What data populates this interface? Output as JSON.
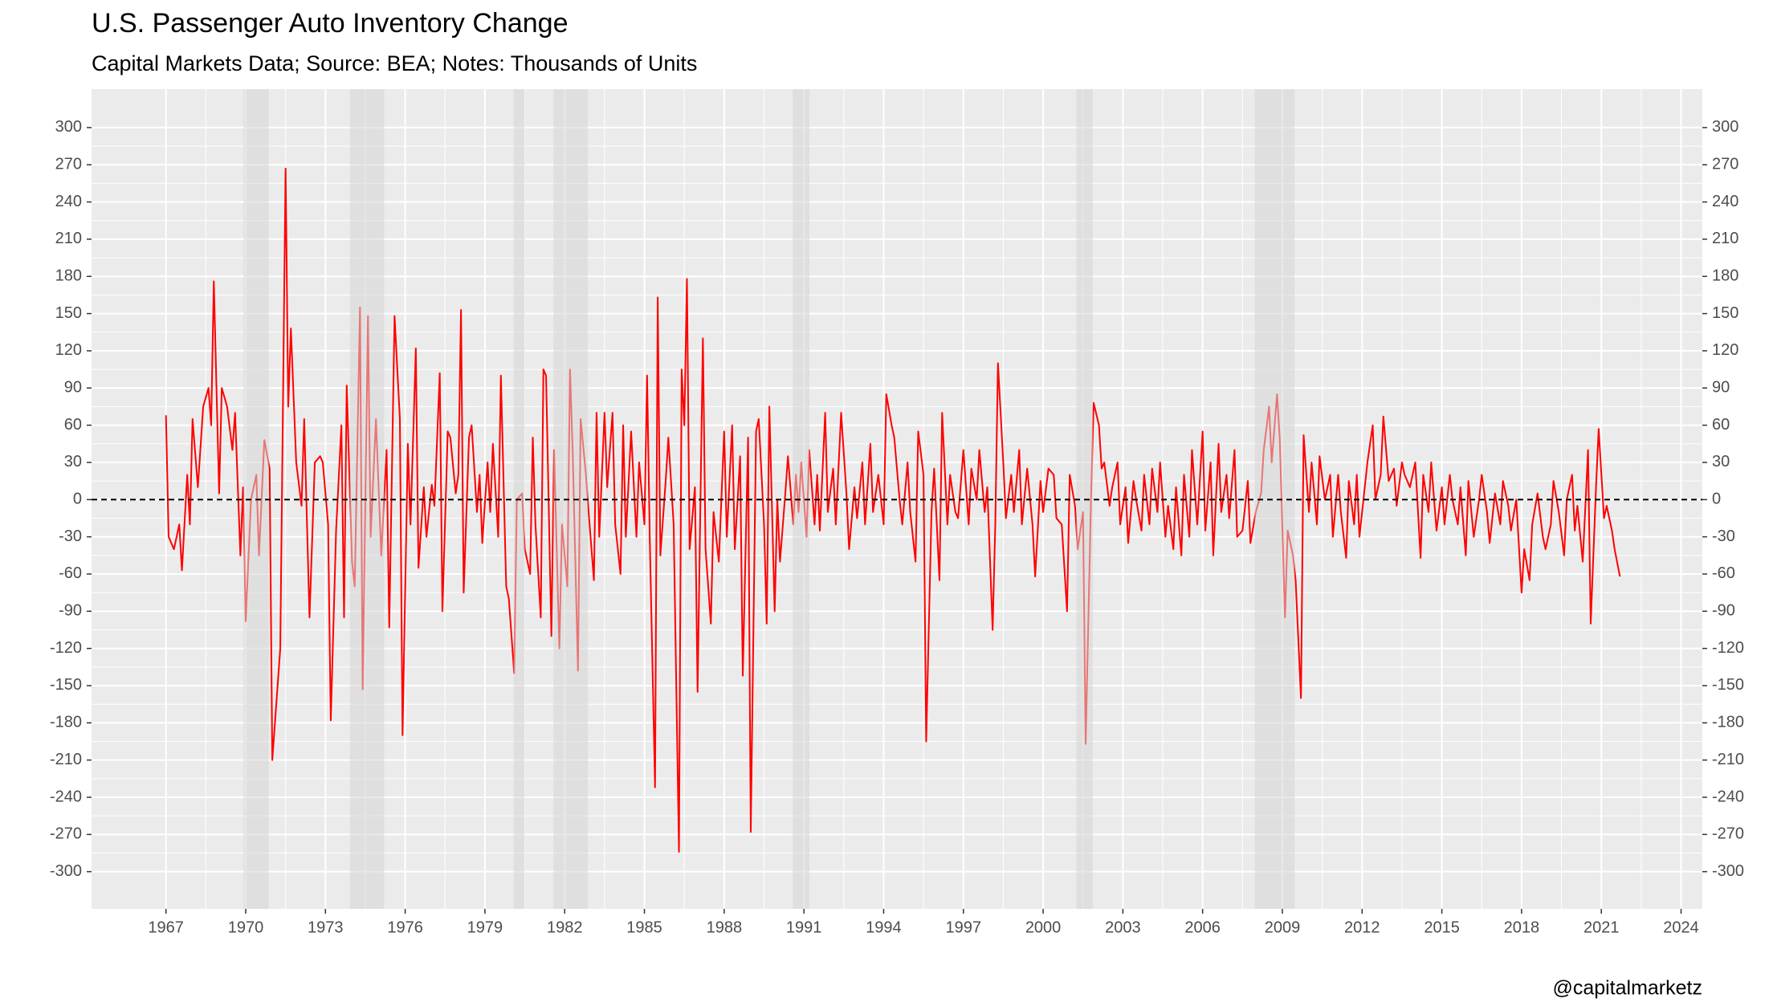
{
  "chart_data": {
    "type": "line",
    "title": "U.S. Passenger Auto Inventory Change",
    "subtitle": "Capital Markets Data; Source: BEA; Notes: Thousands of Units",
    "caption": "@capitalmarketz",
    "color": "#ff0000",
    "xlim": [
      1964.2,
      2024.8
    ],
    "xticks": [
      1967,
      1970,
      1973,
      1976,
      1979,
      1982,
      1985,
      1988,
      1991,
      1994,
      1997,
      2000,
      2003,
      2006,
      2009,
      2012,
      2015,
      2018,
      2021,
      2024
    ],
    "ylim": [
      -330,
      331
    ],
    "yticks": [
      -300,
      -270,
      -240,
      -210,
      -180,
      -150,
      -120,
      -90,
      -60,
      -30,
      0,
      30,
      60,
      90,
      120,
      150,
      180,
      210,
      240,
      270,
      300
    ],
    "grid": true,
    "hline": 0,
    "shaded_ranges": [
      [
        1969.92,
        1970.87
      ],
      [
        1973.92,
        1975.21
      ],
      [
        1980.08,
        1980.5
      ],
      [
        1981.58,
        1982.87
      ],
      [
        1990.58,
        1991.21
      ],
      [
        2001.25,
        2001.87
      ],
      [
        2007.96,
        2009.46
      ]
    ],
    "x": [
      1967.0,
      1967.1,
      1967.3,
      1967.5,
      1967.6,
      1967.8,
      1967.9,
      1968.0,
      1968.2,
      1968.4,
      1968.6,
      1968.7,
      1968.8,
      1969.0,
      1969.1,
      1969.3,
      1969.5,
      1969.6,
      1969.8,
      1969.9,
      1970.0,
      1970.2,
      1970.4,
      1970.5,
      1970.7,
      1970.9,
      1971.0,
      1971.3,
      1971.5,
      1971.6,
      1971.7,
      1971.9,
      1972.1,
      1972.2,
      1972.4,
      1972.6,
      1972.8,
      1972.9,
      1973.1,
      1973.2,
      1973.4,
      1973.6,
      1973.7,
      1973.8,
      1974.0,
      1974.1,
      1974.3,
      1974.4,
      1974.6,
      1974.7,
      1974.9,
      1975.1,
      1975.3,
      1975.4,
      1975.6,
      1975.8,
      1975.9,
      1976.1,
      1976.2,
      1976.4,
      1976.5,
      1976.7,
      1976.8,
      1977.0,
      1977.1,
      1977.3,
      1977.4,
      1977.6,
      1977.7,
      1977.9,
      1978.0,
      1978.1,
      1978.2,
      1978.4,
      1978.5,
      1978.7,
      1978.8,
      1978.9,
      1979.1,
      1979.2,
      1979.3,
      1979.5,
      1979.6,
      1979.8,
      1979.9,
      1980.1,
      1980.2,
      1980.4,
      1980.5,
      1980.7,
      1980.8,
      1980.9,
      1981.1,
      1981.2,
      1981.3,
      1981.5,
      1981.6,
      1981.8,
      1981.9,
      1982.1,
      1982.2,
      1982.3,
      1982.5,
      1982.6,
      1982.8,
      1982.9,
      1983.1,
      1983.2,
      1983.3,
      1983.5,
      1983.6,
      1983.8,
      1983.9,
      1984.1,
      1984.2,
      1984.3,
      1984.5,
      1984.7,
      1984.8,
      1985.0,
      1985.1,
      1985.2,
      1985.4,
      1985.5,
      1985.6,
      1985.8,
      1985.9,
      1986.1,
      1986.3,
      1986.4,
      1986.5,
      1986.6,
      1986.7,
      1986.9,
      1987.0,
      1987.2,
      1987.3,
      1987.5,
      1987.6,
      1987.8,
      1988.0,
      1988.1,
      1988.3,
      1988.4,
      1988.6,
      1988.7,
      1988.9,
      1989.0,
      1989.2,
      1989.3,
      1989.5,
      1989.6,
      1989.7,
      1989.9,
      1990.0,
      1990.1,
      1990.3,
      1990.4,
      1990.6,
      1990.7,
      1990.8,
      1990.9,
      1991.1,
      1991.2,
      1991.4,
      1991.5,
      1991.6,
      1991.8,
      1991.9,
      1992.1,
      1992.2,
      1992.4,
      1992.6,
      1992.7,
      1992.9,
      1993.0,
      1993.2,
      1993.3,
      1993.5,
      1993.6,
      1993.8,
      1994.0,
      1994.1,
      1994.3,
      1994.4,
      1994.6,
      1994.7,
      1994.9,
      1995.0,
      1995.2,
      1995.3,
      1995.5,
      1995.6,
      1995.8,
      1995.9,
      1996.1,
      1996.2,
      1996.4,
      1996.5,
      1996.7,
      1996.8,
      1997.0,
      1997.2,
      1997.3,
      1997.5,
      1997.6,
      1997.8,
      1997.9,
      1998.1,
      1998.2,
      1998.3,
      1998.5,
      1998.6,
      1998.8,
      1998.9,
      1999.1,
      1999.2,
      1999.4,
      1999.6,
      1999.7,
      1999.9,
      2000.0,
      2000.2,
      2000.4,
      2000.5,
      2000.7,
      2000.9,
      2001.0,
      2001.2,
      2001.3,
      2001.5,
      2001.6,
      2001.8,
      2001.9,
      2002.1,
      2002.2,
      2002.3,
      2002.5,
      2002.6,
      2002.8,
      2002.9,
      2003.1,
      2003.2,
      2003.4,
      2003.5,
      2003.7,
      2003.8,
      2004.0,
      2004.1,
      2004.3,
      2004.4,
      2004.6,
      2004.7,
      2004.9,
      2005.0,
      2005.2,
      2005.3,
      2005.5,
      2005.6,
      2005.8,
      2006.0,
      2006.1,
      2006.3,
      2006.4,
      2006.6,
      2006.7,
      2006.9,
      2007.0,
      2007.2,
      2007.3,
      2007.5,
      2007.7,
      2007.8,
      2008.0,
      2008.2,
      2008.3,
      2008.5,
      2008.6,
      2008.8,
      2008.9,
      2009.1,
      2009.2,
      2009.4,
      2009.5,
      2009.7,
      2009.8,
      2010.0,
      2010.1,
      2010.3,
      2010.4,
      2010.6,
      2010.8,
      2010.9,
      2011.1,
      2011.2,
      2011.4,
      2011.5,
      2011.7,
      2011.8,
      2011.9,
      2012.1,
      2012.2,
      2012.4,
      2012.5,
      2012.7,
      2012.8,
      2013.0,
      2013.2,
      2013.3,
      2013.5,
      2013.6,
      2013.8,
      2014.0,
      2014.2,
      2014.3,
      2014.5,
      2014.6,
      2014.8,
      2015.0,
      2015.1,
      2015.3,
      2015.4,
      2015.6,
      2015.7,
      2015.9,
      2016.0,
      2016.2,
      2016.4,
      2016.5,
      2016.7,
      2016.8,
      2017.0,
      2017.2,
      2017.3,
      2017.5,
      2017.6,
      2017.8,
      2018.0,
      2018.1,
      2018.3,
      2018.4,
      2018.6,
      2018.8,
      2018.9,
      2019.1,
      2019.2,
      2019.4,
      2019.6,
      2019.7,
      2019.9,
      2020.0,
      2020.1,
      2020.3,
      2020.5,
      2020.6,
      2020.8,
      2020.9,
      2021.1,
      2021.2,
      2021.4,
      2021.5,
      2021.7
    ],
    "values": [
      68,
      -30,
      -40,
      -20,
      -57,
      20,
      -20,
      65,
      10,
      75,
      90,
      60,
      176,
      5,
      90,
      75,
      40,
      70,
      -45,
      10,
      -98,
      0,
      20,
      -45,
      48,
      25,
      -210,
      -120,
      267,
      75,
      138,
      30,
      -5,
      65,
      -95,
      30,
      35,
      30,
      -20,
      -178,
      -25,
      60,
      -95,
      92,
      -50,
      -70,
      155,
      -153,
      148,
      -30,
      65,
      -45,
      40,
      -103,
      148,
      65,
      -190,
      45,
      -20,
      122,
      -55,
      10,
      -30,
      12,
      -5,
      102,
      -90,
      55,
      50,
      5,
      20,
      153,
      -75,
      50,
      60,
      -10,
      20,
      -35,
      30,
      -10,
      45,
      -30,
      100,
      -70,
      -80,
      -140,
      0,
      5,
      -40,
      -60,
      50,
      -20,
      -95,
      105,
      100,
      -110,
      40,
      -120,
      -20,
      -70,
      105,
      40,
      -138,
      65,
      20,
      -10,
      -65,
      70,
      -30,
      70,
      10,
      70,
      -20,
      -60,
      60,
      -30,
      55,
      -30,
      30,
      -20,
      100,
      -30,
      -232,
      163,
      -45,
      15,
      50,
      -20,
      -284,
      105,
      60,
      178,
      -40,
      10,
      -155,
      130,
      -40,
      -100,
      -10,
      -50,
      55,
      -30,
      60,
      -40,
      35,
      -142,
      50,
      -268,
      55,
      65,
      -20,
      -100,
      75,
      -90,
      0,
      -50,
      5,
      35,
      -20,
      20,
      -10,
      30,
      -30,
      40,
      -20,
      20,
      -25,
      70,
      -10,
      25,
      -20,
      70,
      5,
      -40,
      10,
      -15,
      30,
      -20,
      45,
      -10,
      20,
      -20,
      85,
      60,
      50,
      0,
      -20,
      30,
      -10,
      -50,
      55,
      20,
      -195,
      -10,
      25,
      -65,
      70,
      -20,
      20,
      -10,
      -15,
      40,
      -20,
      25,
      0,
      40,
      -10,
      10,
      -105,
      -20,
      110,
      30,
      -15,
      20,
      -10,
      40,
      -20,
      25,
      -20,
      -62,
      15,
      -10,
      25,
      20,
      -15,
      -20,
      -90,
      20,
      -5,
      -40,
      -10,
      -197,
      0,
      78,
      60,
      25,
      30,
      -5,
      10,
      30,
      -20,
      10,
      -35,
      15,
      0,
      -25,
      20,
      -20,
      25,
      -10,
      30,
      -30,
      -5,
      -40,
      10,
      -45,
      20,
      -30,
      40,
      -20,
      55,
      -25,
      30,
      -45,
      45,
      -10,
      20,
      -15,
      40,
      -30,
      -25,
      15,
      -35,
      -10,
      5,
      40,
      75,
      30,
      85,
      50,
      -95,
      -25,
      -45,
      -65,
      -160,
      52,
      -10,
      30,
      -20,
      35,
      0,
      20,
      -30,
      20,
      -10,
      -47,
      15,
      -20,
      20,
      -30,
      10,
      30,
      60,
      0,
      20,
      67,
      15,
      25,
      -5,
      30,
      20,
      10,
      30,
      -47,
      20,
      -10,
      30,
      -25,
      10,
      -20,
      20,
      0,
      -20,
      10,
      -45,
      15,
      -30,
      0,
      20,
      -10,
      -35,
      5,
      -20,
      15,
      -5,
      -25,
      0,
      -75,
      -40,
      -65,
      -20,
      5,
      -30,
      -40,
      -20,
      15,
      -10,
      -45,
      0,
      20,
      -25,
      -5,
      -50,
      40,
      -100,
      10,
      57,
      -15,
      -5,
      -25,
      -40,
      -62
    ]
  }
}
